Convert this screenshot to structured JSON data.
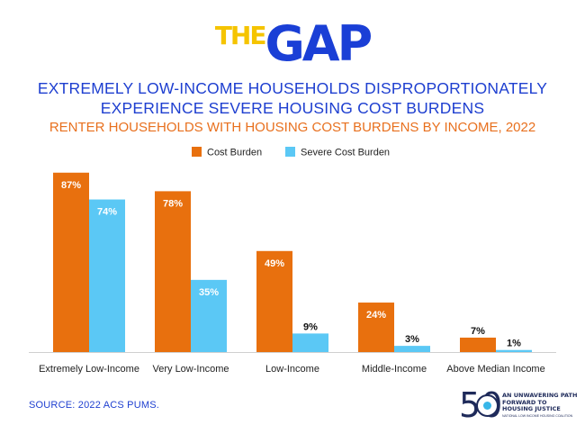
{
  "logo": {
    "prefix": "THE",
    "main": "GAP",
    "colors": {
      "prefix": "#f5c400",
      "main": "#1a3fd6"
    }
  },
  "title_line1": "EXTREMELY LOW-INCOME HOUSEHOLDS DISPROPORTIONATELY",
  "title_line2": "EXPERIENCE SEVERE HOUSING COST BURDENS",
  "subtitle": "RENTER HOUSEHOLDS WITH HOUSING COST BURDENS BY INCOME, 2022",
  "source": "SOURCE: 2022 ACS PUMS.",
  "badge": {
    "number": "50",
    "tagline": "AN UNWAVERING PATH FORWARD TO HOUSING JUSTICE",
    "fine_print": "NATIONAL LOW INCOME HOUSING COALITION"
  },
  "chart_data": {
    "type": "bar",
    "title": "Renter Households with Housing Cost Burdens by Income, 2022",
    "xlabel": "",
    "ylabel": "",
    "ylim": [
      0,
      100
    ],
    "grid": false,
    "legend_position": "top-center",
    "categories": [
      "Extremely Low-Income",
      "Very Low-Income",
      "Low-Income",
      "Middle-Income",
      "Above Median Income"
    ],
    "series": [
      {
        "name": "Cost Burden",
        "color": "#e8700e",
        "values": [
          87,
          78,
          49,
          24,
          7
        ],
        "labels": [
          "87%",
          "78%",
          "49%",
          "24%",
          "7%"
        ]
      },
      {
        "name": "Severe Cost Burden",
        "color": "#5bc8f5",
        "values": [
          74,
          35,
          9,
          3,
          1
        ],
        "labels": [
          "74%",
          "35%",
          "9%",
          "3%",
          "1%"
        ]
      }
    ]
  }
}
